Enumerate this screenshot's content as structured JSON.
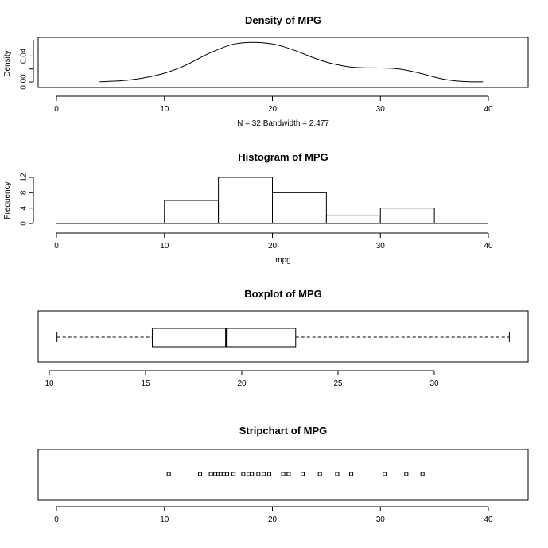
{
  "chart_data": [
    {
      "type": "line",
      "title": "Density of MPG",
      "xlabel": "N = 32   Bandwidth = 2.477",
      "ylabel": "Density",
      "xlim": [
        0,
        40
      ],
      "ylim": [
        0,
        0.065
      ],
      "x_ticks": [
        0,
        10,
        20,
        30,
        40
      ],
      "y_ticks": [
        0,
        0.02,
        0.04
      ],
      "y_tick_labels": [
        "0.00",
        "",
        "0.04"
      ],
      "x": [
        4.0,
        6,
        8,
        10,
        12,
        14,
        16,
        17,
        18,
        19,
        20,
        21,
        22,
        23,
        24,
        25,
        26,
        27,
        28,
        29,
        30,
        31,
        32,
        33,
        34,
        35,
        36,
        37,
        38,
        39.5
      ],
      "y": [
        0.0003,
        0.0018,
        0.006,
        0.0135,
        0.026,
        0.043,
        0.0565,
        0.0598,
        0.061,
        0.0606,
        0.0585,
        0.0545,
        0.049,
        0.0425,
        0.036,
        0.0305,
        0.0265,
        0.0235,
        0.022,
        0.0216,
        0.0215,
        0.021,
        0.0193,
        0.016,
        0.012,
        0.0075,
        0.0038,
        0.0015,
        0.0005,
        0.0001
      ]
    },
    {
      "type": "bar",
      "title": "Histogram of MPG",
      "xlabel": "mpg",
      "ylabel": "Frequency",
      "xlim": [
        0,
        40
      ],
      "ylim": [
        0,
        14
      ],
      "x_ticks": [
        0,
        10,
        20,
        30,
        40
      ],
      "y_ticks": [
        0,
        4,
        8,
        12
      ],
      "bins": [
        [
          10,
          15
        ],
        [
          15,
          20
        ],
        [
          20,
          25
        ],
        [
          25,
          30
        ],
        [
          30,
          35
        ]
      ],
      "values": [
        6,
        12,
        8,
        2,
        4
      ]
    },
    {
      "type": "boxplot",
      "title": "Boxplot of MPG",
      "xlim": [
        10.4,
        33.9
      ],
      "x_ticks": [
        10,
        15,
        20,
        25,
        30
      ],
      "min": 10.4,
      "q1": 15.35,
      "median": 19.2,
      "q3": 22.8,
      "max": 33.9
    },
    {
      "type": "scatter",
      "title": "Stripchart of MPG",
      "xlim": [
        0,
        40
      ],
      "x_ticks": [
        0,
        10,
        20,
        30,
        40
      ],
      "values": [
        10.4,
        13.3,
        14.3,
        14.7,
        15.0,
        15.2,
        15.5,
        15.8,
        16.4,
        17.3,
        17.8,
        18.1,
        18.7,
        19.2,
        19.7,
        21.0,
        21.4,
        21.5,
        22.8,
        24.4,
        26.0,
        27.3,
        30.4,
        32.4,
        33.9
      ]
    }
  ]
}
